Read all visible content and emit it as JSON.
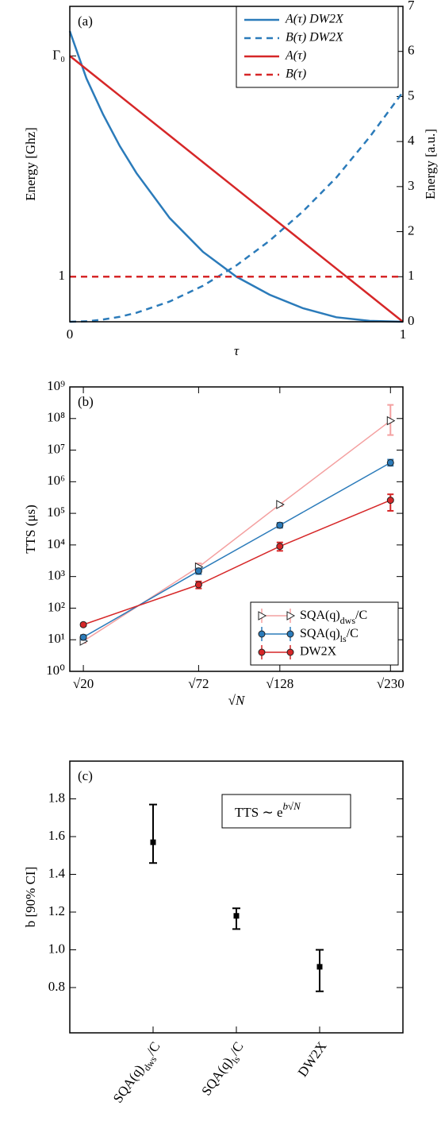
{
  "chart_data": [
    {
      "type": "line",
      "label": "(a)",
      "xlabel": "τ",
      "ylabel": "Energy [Ghz]",
      "y2label": "Energy [a.u.]",
      "x": [
        0,
        0.05,
        0.1,
        0.15,
        0.2,
        0.3,
        0.4,
        0.5,
        0.6,
        0.7,
        0.8,
        0.9,
        1
      ],
      "series": [
        {
          "name": "A(τ) DW2X",
          "color": "#2b7bba",
          "dashed": false,
          "axis": "y2",
          "values": [
            6.45,
            5.4,
            4.6,
            3.9,
            3.3,
            2.3,
            1.55,
            1.0,
            0.6,
            0.3,
            0.1,
            0.02,
            0
          ]
        },
        {
          "name": "B(τ) DW2X",
          "color": "#2b7bba",
          "dashed": true,
          "axis": "y2",
          "values": [
            0,
            0.01,
            0.05,
            0.11,
            0.2,
            0.45,
            0.8,
            1.25,
            1.8,
            2.45,
            3.2,
            4.1,
            5.1
          ]
        },
        {
          "name": "A(τ)",
          "color": "#d62728",
          "dashed": false,
          "values": [
            5.9,
            5.605,
            5.31,
            5.015,
            4.72,
            4.13,
            3.54,
            2.95,
            2.36,
            1.77,
            1.18,
            0.59,
            0
          ]
        },
        {
          "name": "B(τ)",
          "color": "#d62728",
          "dashed": true,
          "values": [
            1,
            1,
            1,
            1,
            1,
            1,
            1,
            1,
            1,
            1,
            1,
            1,
            1
          ]
        }
      ],
      "xlim": [
        0,
        1
      ],
      "xticks": [
        0,
        1
      ],
      "ylim": [
        0,
        7
      ],
      "yticks": [
        1,
        {
          "value": 5.9,
          "label": "Γ₀"
        }
      ],
      "ycolor": "#d62728",
      "y2lim": [
        0,
        7
      ],
      "y2ticks": [
        0,
        1,
        2,
        3,
        4,
        5,
        6,
        7
      ],
      "y2color": "#2b7bba",
      "legend": "upper right"
    },
    {
      "type": "line",
      "label": "(b)",
      "xlabel": "√N",
      "ylabel": "TTS (μs)",
      "log_y": true,
      "x": [
        4.472,
        8.485,
        11.314,
        15.166
      ],
      "series": [
        {
          "name": "SQA(q)dws/C",
          "color": "#f4a0a0",
          "marker": "triangle",
          "values": [
            9,
            2000,
            190000,
            85000000
          ],
          "lower": [
            8,
            1700,
            170000,
            30000000
          ],
          "upper": [
            10,
            2600,
            210000,
            270000000
          ]
        },
        {
          "name": "SQA(q)ls/C",
          "color": "#2b7bba",
          "marker": "circle",
          "values": [
            12,
            1500,
            42000,
            4000000
          ],
          "lower": [
            10,
            1200,
            35000,
            3200000
          ],
          "upper": [
            14,
            1800,
            50000,
            5000000
          ]
        },
        {
          "name": "DW2X",
          "color": "#d62728",
          "marker": "circle",
          "values": [
            30,
            550,
            9000,
            260000
          ],
          "lower": [
            27,
            420,
            6500,
            120000
          ],
          "upper": [
            33,
            700,
            12000,
            400000
          ]
        }
      ],
      "xlim": [
        4,
        15.6
      ],
      "xticks": [
        {
          "value": 4.472,
          "label": "√20"
        },
        {
          "value": 8.485,
          "label": "√72"
        },
        {
          "value": 11.314,
          "label": "√128"
        },
        {
          "value": 15.166,
          "label": "√230"
        }
      ],
      "ylim": [
        1,
        1000000000
      ],
      "yticks": [
        {
          "value": 1,
          "label": "10⁰"
        },
        {
          "value": 10,
          "label": "10¹"
        },
        {
          "value": 100,
          "label": "10²"
        },
        {
          "value": 1000,
          "label": "10³"
        },
        {
          "value": 10000,
          "label": "10⁴"
        },
        {
          "value": 100000,
          "label": "10⁵"
        },
        {
          "value": 1000000,
          "label": "10⁶"
        },
        {
          "value": 10000000,
          "label": "10⁷"
        },
        {
          "value": 100000000,
          "label": "10⁸"
        },
        {
          "value": 1000000000,
          "label": "10⁹"
        }
      ],
      "legend": "lower right"
    },
    {
      "type": "errorbar",
      "label": "(c)",
      "ylabel": "b [90% CI]",
      "categories": [
        "SQA(q)dws/C",
        "SQA(q)ls/C",
        "DW2X"
      ],
      "values": [
        1.57,
        1.18,
        0.91
      ],
      "lower": [
        1.46,
        1.11,
        0.78
      ],
      "upper": [
        1.77,
        1.22,
        1.0
      ],
      "color": "#000000",
      "ylim": [
        0.56,
        2.0
      ],
      "yticks": [
        0.8,
        {
          "value": 1,
          "label": "1.0"
        },
        1.2,
        1.4,
        1.6,
        1.8
      ],
      "annotation": {
        "text": "TTS ∼ e",
        "exponent": "b√N"
      }
    }
  ]
}
